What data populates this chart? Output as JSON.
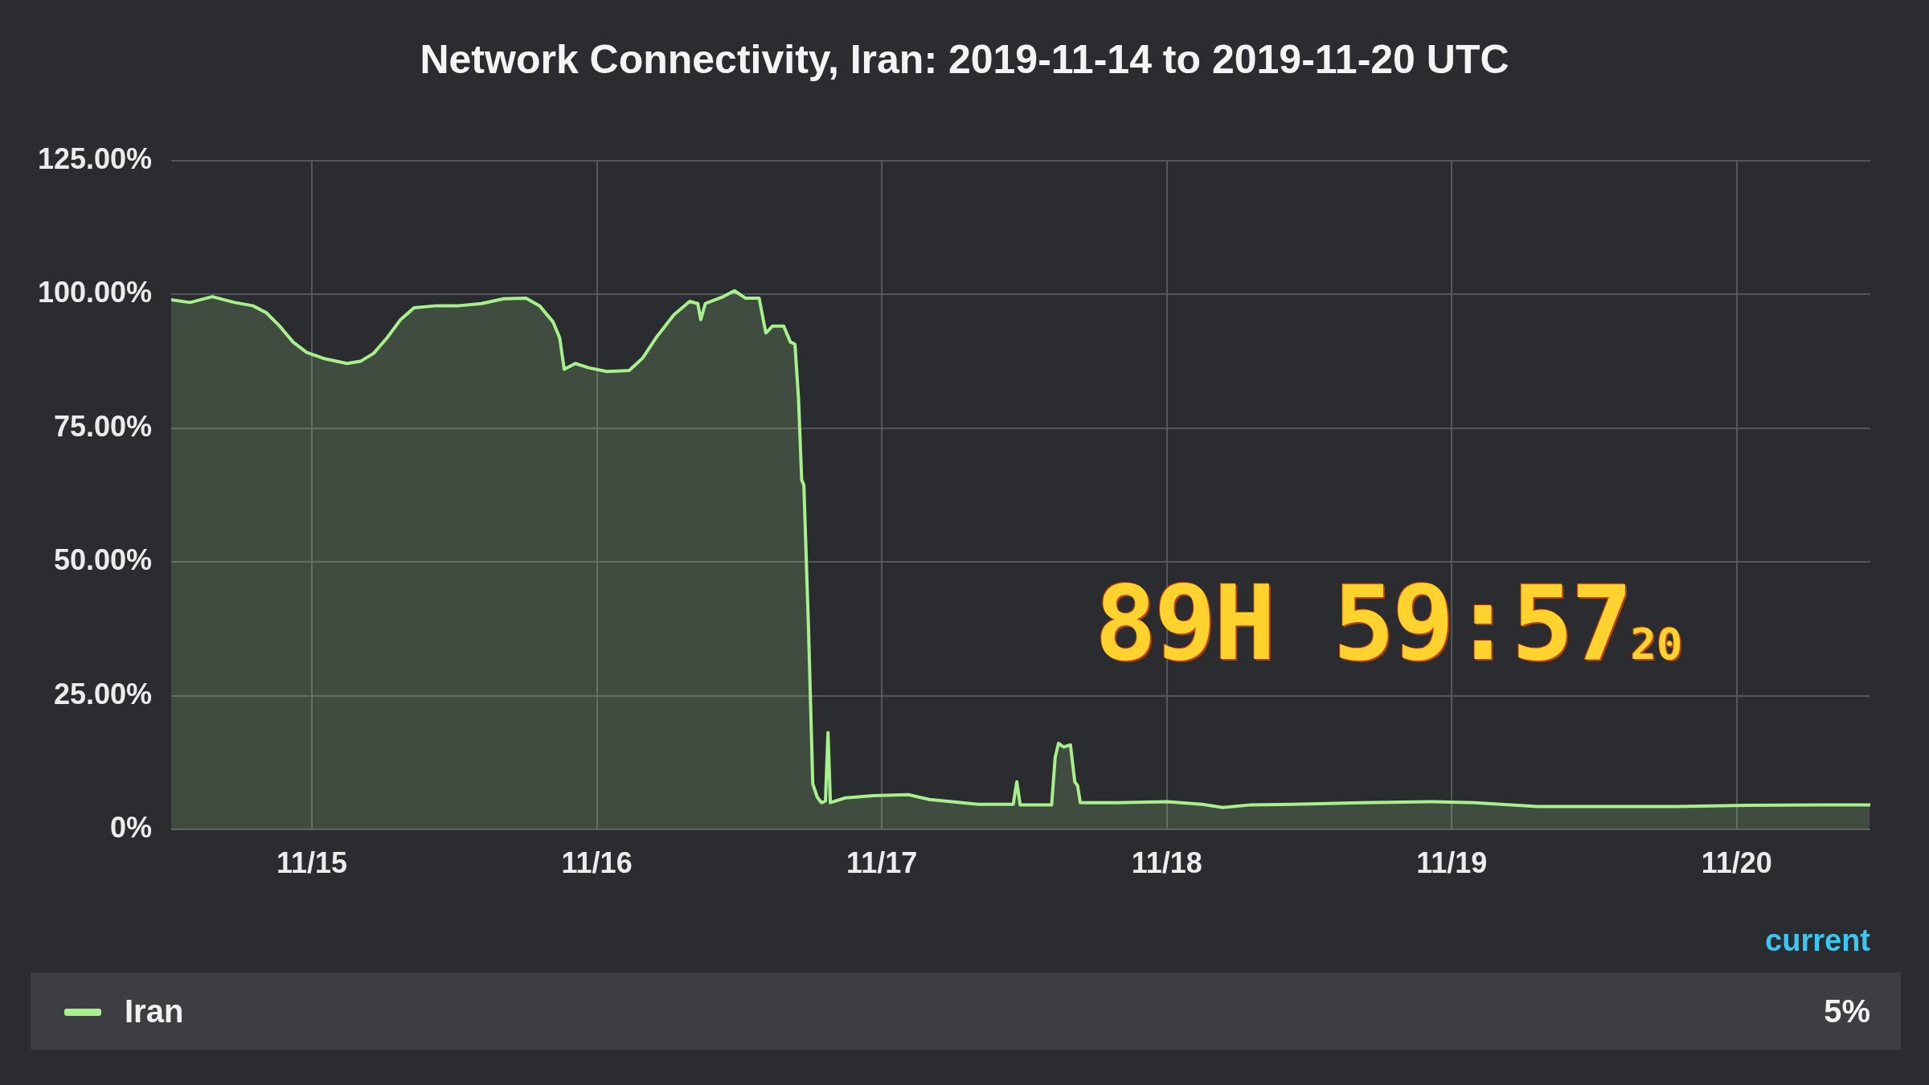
{
  "chart_data": {
    "type": "area",
    "title": "Network Connectivity, Iran: 2019-11-14 to 2019-11-20 UTC",
    "x": [
      "2019-11-14T12:09",
      "2019-11-14T13:44",
      "2019-11-14T15:37",
      "2019-11-14T17:30",
      "2019-11-14T19:01",
      "2019-11-14T20:09",
      "2019-11-14T21:17",
      "2019-11-14T22:25",
      "2019-11-14T23:33",
      "2019-11-15T01:04",
      "2019-11-15T02:57",
      "2019-11-15T04:05",
      "2019-11-15T05:12",
      "2019-11-15T06:20",
      "2019-11-15T07:28",
      "2019-11-15T08:36",
      "2019-11-15T10:29",
      "2019-11-15T12:23",
      "2019-11-15T14:16",
      "2019-11-15T16:09",
      "2019-11-15T18:02",
      "2019-11-15T19:10",
      "2019-11-15T20:18",
      "2019-11-15T20:52",
      "2019-11-15T21:15",
      "2019-11-15T22:11",
      "2019-11-15T23:19",
      "2019-11-16T00:50",
      "2019-11-16T02:43",
      "2019-11-16T03:51",
      "2019-11-16T04:59",
      "2019-11-16T06:29",
      "2019-11-16T07:49",
      "2019-11-16T08:30",
      "2019-11-16T08:45",
      "2019-11-16T09:08",
      "2019-11-16T10:39",
      "2019-11-16T11:35",
      "2019-11-16T12:32",
      "2019-11-16T13:40",
      "2019-11-16T14:14",
      "2019-11-16T14:48",
      "2019-11-16T15:44",
      "2019-11-16T16:18",
      "2019-11-16T16:41",
      "2019-11-16T16:59",
      "2019-11-16T17:15",
      "2019-11-16T17:26",
      "2019-11-16T17:49",
      "2019-11-16T18:11",
      "2019-11-16T18:34",
      "2019-11-16T18:55",
      "2019-11-16T19:15",
      "2019-11-16T19:28",
      "2019-11-16T19:40",
      "2019-11-16T20:56",
      "2019-11-16T23:17",
      "2019-11-17T02:14",
      "2019-11-17T04:00",
      "2019-11-17T08:07",
      "2019-11-17T11:04",
      "2019-11-17T11:22",
      "2019-11-17T11:39",
      "2019-11-17T14:18",
      "2019-11-17T14:36",
      "2019-11-17T14:53",
      "2019-11-17T15:18",
      "2019-11-17T15:53",
      "2019-11-17T16:15",
      "2019-11-17T16:29",
      "2019-11-17T16:43",
      "2019-11-17T19:54",
      "2019-11-18T00:01",
      "2019-11-18T02:58",
      "2019-11-18T04:44",
      "2019-11-18T07:05",
      "2019-11-18T10:37",
      "2019-11-18T16:30",
      "2019-11-18T22:23",
      "2019-11-19T01:55",
      "2019-11-19T07:13",
      "2019-11-19T13:07",
      "2019-11-19T19:00",
      "2019-11-20T00:53",
      "2019-11-20T06:46",
      "2019-11-20T11:11"
    ],
    "series": [
      {
        "name": "Iran",
        "color": "#a8f08c",
        "values": [
          99.0,
          98.5,
          99.6,
          98.5,
          97.9,
          96.6,
          94.1,
          91.1,
          89.2,
          88.0,
          87.1,
          87.5,
          89.0,
          91.9,
          95.3,
          97.5,
          97.9,
          97.9,
          98.3,
          99.2,
          99.3,
          97.9,
          94.9,
          91.9,
          86.0,
          87.1,
          86.3,
          85.6,
          85.8,
          88.1,
          91.9,
          96.2,
          98.7,
          98.3,
          95.3,
          98.3,
          99.6,
          100.7,
          99.3,
          99.3,
          92.8,
          94.1,
          94.1,
          91.1,
          90.7,
          80.5,
          65.3,
          64.4,
          38.1,
          8.5,
          6.0,
          5.0,
          5.3,
          18.1,
          5.0,
          5.9,
          6.3,
          6.5,
          5.6,
          4.7,
          4.7,
          8.9,
          4.6,
          4.6,
          13.5,
          16.1,
          15.4,
          15.8,
          8.9,
          8.2,
          5.0,
          5.0,
          5.2,
          4.7,
          4.1,
          4.6,
          4.7,
          5.0,
          5.2,
          5.0,
          4.3,
          4.3,
          4.3,
          4.5,
          4.6,
          4.6
        ]
      }
    ],
    "xlim": [
      "2019-11-14T12:09",
      "2019-11-20T11:15"
    ],
    "xticks": [
      {
        "value": "2019-11-15",
        "label": "11/15"
      },
      {
        "value": "2019-11-16",
        "label": "11/16"
      },
      {
        "value": "2019-11-17",
        "label": "11/17"
      },
      {
        "value": "2019-11-18",
        "label": "11/18"
      },
      {
        "value": "2019-11-19",
        "label": "11/19"
      },
      {
        "value": "2019-11-20",
        "label": "11/20"
      }
    ],
    "ylim": [
      0,
      125
    ],
    "yticks": [
      {
        "value": 0,
        "label": "0%"
      },
      {
        "value": 25,
        "label": "25.00%"
      },
      {
        "value": 50,
        "label": "50.00%"
      },
      {
        "value": 75,
        "label": "75.00%"
      },
      {
        "value": 100,
        "label": "100.00%"
      },
      {
        "value": 125,
        "label": "125.00%"
      }
    ],
    "grid": true,
    "legend": "bottom",
    "marker": "none",
    "line_style": "solid",
    "annotations": [
      "89H 59:57$_{20}$",
      "current",
      "5%"
    ]
  }
}
